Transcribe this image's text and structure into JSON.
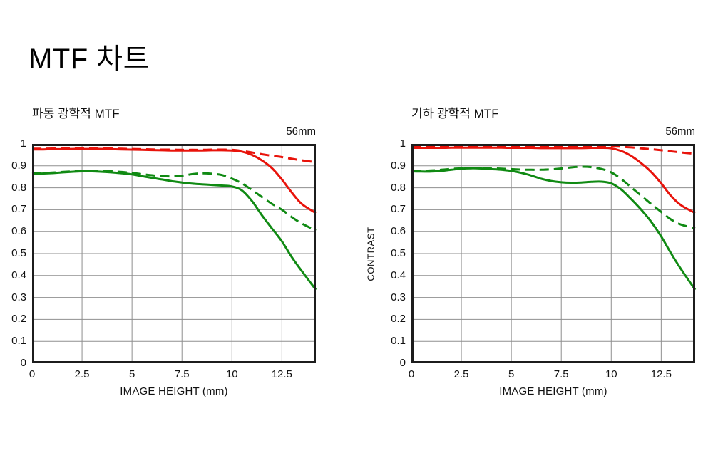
{
  "page": {
    "title": "MTF 차트"
  },
  "colors": {
    "red": "#e8130b",
    "green": "#108a13",
    "grid": "#8f8f8f",
    "border": "#1c1c1c",
    "text": "#111111",
    "background": "#ffffff"
  },
  "chart_data": [
    {
      "type": "line",
      "title": "파동 광학적 MTF",
      "annotation": "56mm",
      "xlabel": "IMAGE HEIGHT (mm)",
      "ylabel": "",
      "xlim": [
        0,
        14.2
      ],
      "ylim": [
        0,
        1
      ],
      "grid": true,
      "legend": "none",
      "x_ticks": [
        0,
        2.5,
        5,
        7.5,
        10,
        12.5
      ],
      "x_tick_labels": [
        "0",
        "2.5",
        "5",
        "7.5",
        "10",
        "12.5"
      ],
      "y_ticks": [
        1,
        0.9,
        0.8,
        0.7,
        0.6,
        0.5,
        0.4,
        0.3,
        0.2,
        0.1,
        0
      ],
      "y_tick_labels": [
        "1",
        "0.9",
        "0.8",
        "0.7",
        "0.6",
        "0.5",
        "0.4",
        "0.3",
        "0.2",
        "0.1",
        "0"
      ],
      "x": [
        0,
        0.5,
        1,
        1.5,
        2,
        2.5,
        3,
        3.5,
        4,
        4.5,
        5,
        5.5,
        6,
        6.5,
        7,
        7.5,
        8,
        8.5,
        9,
        9.5,
        10,
        10.5,
        11,
        11.5,
        12,
        12.5,
        13,
        13.5,
        14.2
      ],
      "series": [
        {
          "name": "green-solid",
          "color": "green",
          "dash": "solid",
          "values": [
            0.864,
            0.865,
            0.867,
            0.87,
            0.873,
            0.875,
            0.875,
            0.873,
            0.87,
            0.866,
            0.861,
            0.853,
            0.845,
            0.838,
            0.83,
            0.824,
            0.819,
            0.816,
            0.813,
            0.81,
            0.806,
            0.788,
            0.74,
            0.675,
            0.615,
            0.556,
            0.483,
            0.42,
            0.335
          ]
        },
        {
          "name": "green-dashed",
          "color": "green",
          "dash": "dashed",
          "values": [
            0.865,
            0.867,
            0.869,
            0.872,
            0.875,
            0.877,
            0.878,
            0.877,
            0.875,
            0.872,
            0.868,
            0.862,
            0.857,
            0.853,
            0.852,
            0.855,
            0.862,
            0.866,
            0.864,
            0.858,
            0.842,
            0.82,
            0.79,
            0.758,
            0.727,
            0.7,
            0.666,
            0.637,
            0.605
          ]
        },
        {
          "name": "red-solid",
          "color": "red",
          "dash": "solid",
          "values": [
            0.975,
            0.975,
            0.976,
            0.976,
            0.977,
            0.977,
            0.977,
            0.977,
            0.976,
            0.975,
            0.974,
            0.973,
            0.972,
            0.971,
            0.97,
            0.97,
            0.97,
            0.97,
            0.971,
            0.971,
            0.97,
            0.965,
            0.95,
            0.925,
            0.89,
            0.838,
            0.778,
            0.726,
            0.685
          ]
        },
        {
          "name": "red-dashed",
          "color": "red",
          "dash": "dashed",
          "values": [
            0.978,
            0.978,
            0.979,
            0.979,
            0.98,
            0.98,
            0.98,
            0.979,
            0.979,
            0.978,
            0.977,
            0.976,
            0.975,
            0.974,
            0.974,
            0.973,
            0.973,
            0.973,
            0.974,
            0.974,
            0.973,
            0.968,
            0.961,
            0.953,
            0.946,
            0.94,
            0.932,
            0.925,
            0.917
          ]
        }
      ]
    },
    {
      "type": "line",
      "title": "기하 광학적 MTF",
      "annotation": "56mm",
      "xlabel": "IMAGE HEIGHT (mm)",
      "ylabel": "CONTRAST",
      "xlim": [
        0,
        14.2
      ],
      "ylim": [
        0,
        1
      ],
      "grid": true,
      "legend": "none",
      "x_ticks": [
        0,
        2.5,
        5,
        7.5,
        10,
        12.5
      ],
      "x_tick_labels": [
        "0",
        "2.5",
        "5",
        "7.5",
        "10",
        "12.5"
      ],
      "y_ticks": [
        1,
        0.9,
        0.8,
        0.7,
        0.6,
        0.5,
        0.4,
        0.3,
        0.2,
        0.1,
        0
      ],
      "y_tick_labels": [
        "1",
        "0.9",
        "0.8",
        "0.7",
        "0.6",
        "0.5",
        "0.4",
        "0.3",
        "0.2",
        "0.1",
        "0"
      ],
      "x": [
        0,
        0.5,
        1,
        1.5,
        2,
        2.5,
        3,
        3.5,
        4,
        4.5,
        5,
        5.5,
        6,
        6.5,
        7,
        7.5,
        8,
        8.5,
        9,
        9.5,
        10,
        10.5,
        11,
        11.5,
        12,
        12.5,
        13,
        13.5,
        14.2
      ],
      "series": [
        {
          "name": "green-solid",
          "color": "green",
          "dash": "solid",
          "values": [
            0.875,
            0.874,
            0.874,
            0.877,
            0.882,
            0.887,
            0.889,
            0.888,
            0.885,
            0.882,
            0.877,
            0.868,
            0.856,
            0.841,
            0.831,
            0.825,
            0.823,
            0.824,
            0.827,
            0.828,
            0.82,
            0.792,
            0.748,
            0.7,
            0.645,
            0.578,
            0.5,
            0.428,
            0.335
          ]
        },
        {
          "name": "green-dashed",
          "color": "green",
          "dash": "dashed",
          "values": [
            0.877,
            0.877,
            0.879,
            0.882,
            0.886,
            0.889,
            0.891,
            0.891,
            0.889,
            0.887,
            0.885,
            0.883,
            0.882,
            0.882,
            0.884,
            0.888,
            0.893,
            0.896,
            0.894,
            0.886,
            0.87,
            0.84,
            0.802,
            0.764,
            0.726,
            0.69,
            0.655,
            0.632,
            0.615
          ]
        },
        {
          "name": "red-solid",
          "color": "red",
          "dash": "solid",
          "values": [
            0.982,
            0.982,
            0.982,
            0.982,
            0.983,
            0.983,
            0.983,
            0.983,
            0.983,
            0.983,
            0.982,
            0.982,
            0.982,
            0.981,
            0.981,
            0.981,
            0.981,
            0.981,
            0.982,
            0.982,
            0.98,
            0.968,
            0.945,
            0.912,
            0.872,
            0.82,
            0.762,
            0.72,
            0.685
          ]
        },
        {
          "name": "red-dashed",
          "color": "red",
          "dash": "dashed",
          "values": [
            0.99,
            0.99,
            0.99,
            0.99,
            0.991,
            0.991,
            0.991,
            0.991,
            0.99,
            0.99,
            0.99,
            0.99,
            0.99,
            0.989,
            0.989,
            0.989,
            0.989,
            0.99,
            0.99,
            0.99,
            0.989,
            0.987,
            0.984,
            0.98,
            0.976,
            0.971,
            0.966,
            0.961,
            0.955
          ]
        }
      ]
    }
  ]
}
